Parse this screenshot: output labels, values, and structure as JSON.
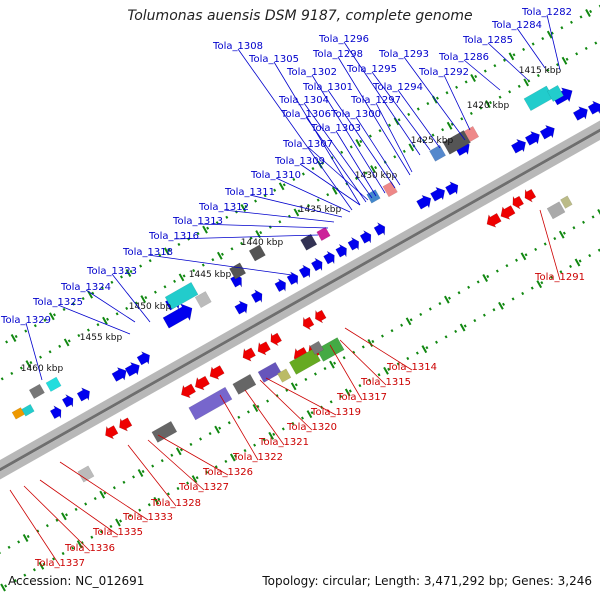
{
  "title": "Tolumonas auensis DSM 9187, complete genome",
  "footer": {
    "accession": "Accession: NC_012691",
    "topology": "Topology: circular; Length: 3,471,292 bp; Genes: 3,246"
  },
  "colors": {
    "forward_label": "#0000cc",
    "reverse_label": "#cc0000",
    "backbone": "#888888",
    "tick": "#118811"
  },
  "kbp_labels": [
    "1415 kbp",
    "1420 kbp",
    "1425 kbp",
    "1430 kbp",
    "1435 kbp",
    "1440 kbp",
    "1445 kbp",
    "1450 kbp",
    "1455 kbp",
    "1460 kbp"
  ],
  "forward_gene_labels": [
    "Tola_1282",
    "Tola_1284",
    "Tola_1285",
    "Tola_1286",
    "Tola_1292",
    "Tola_1293",
    "Tola_1294",
    "Tola_1295",
    "Tola_1296",
    "Tola_1297",
    "Tola_1298",
    "Tola_1300",
    "Tola_1301",
    "Tola_1302",
    "Tola_1303",
    "Tola_1304",
    "Tola_1305",
    "Tola_1306",
    "Tola_1307",
    "Tola_1308",
    "Tola_1309",
    "Tola_1310",
    "Tola_1311",
    "Tola_1312",
    "Tola_1313",
    "Tola_1316",
    "Tola_1318",
    "Tola_1323",
    "Tola_1324",
    "Tola_1325",
    "Tola_1329"
  ],
  "reverse_gene_labels": [
    "Tola_1291",
    "Tola_1314",
    "Tola_1315",
    "Tola_1317",
    "Tola_1319",
    "Tola_1320",
    "Tola_1321",
    "Tola_1322",
    "Tola_1326",
    "Tola_1327",
    "Tola_1328",
    "Tola_1333",
    "Tola_1335",
    "Tola_1336",
    "Tola_1337"
  ]
}
